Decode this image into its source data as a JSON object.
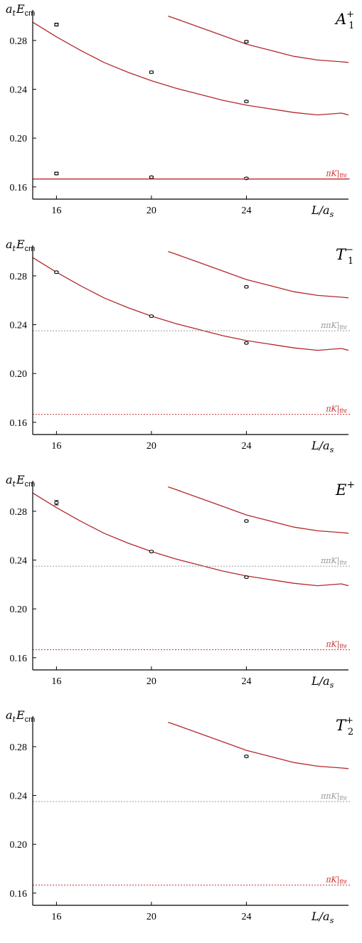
{
  "colors": {
    "curve": "#b5282a",
    "threshold_pk": "#c83232",
    "threshold_ppk": "#9a9a9a",
    "axis": "#000000",
    "point": "#000000"
  },
  "chart_data": [
    {
      "type": "scatter",
      "irrep": "A1+",
      "label": {
        "base": "A",
        "sub": "1",
        "sup": "+"
      },
      "ylabel": {
        "base": "a",
        "sub": "t",
        "main": "E",
        "msub": "cm"
      },
      "xlabel": {
        "base": "L/a",
        "sub": "s"
      },
      "xlim": [
        15,
        28.3
      ],
      "ylim": [
        0.15,
        0.305
      ],
      "xticks": [
        "16",
        "20",
        "24"
      ],
      "yticks": [
        "0.28",
        "0.24",
        "0.20",
        "0.16"
      ],
      "points": [
        {
          "x": 16,
          "y": 0.293,
          "err": 0.0012
        },
        {
          "x": 16,
          "y": 0.171,
          "err": 0.0011
        },
        {
          "x": 20,
          "y": 0.254,
          "err": 0.0009
        },
        {
          "x": 20,
          "y": 0.168,
          "err": 0.0008
        },
        {
          "x": 24,
          "y": 0.279,
          "err": 0.0009
        },
        {
          "x": 24,
          "y": 0.23,
          "err": 0.0008
        },
        {
          "x": 24,
          "y": 0.167,
          "err": 0.0007
        }
      ],
      "curves": [
        {
          "x": [
            15,
            16,
            17,
            18,
            19,
            20,
            21,
            22,
            23,
            24,
            25,
            26,
            27,
            28,
            28.3
          ],
          "y": [
            0.295,
            0.283,
            0.272,
            0.262,
            0.254,
            0.247,
            0.241,
            0.236,
            0.231,
            0.227,
            0.224,
            0.221,
            0.219,
            0.2205,
            0.219
          ]
        },
        {
          "x": [
            20.7,
            21,
            22,
            23,
            24,
            25,
            26,
            27,
            28,
            28.3
          ],
          "y": [
            0.3,
            0.298,
            0.291,
            0.284,
            0.277,
            0.272,
            0.267,
            0.264,
            0.2625,
            0.262
          ]
        },
        {
          "x": [
            15,
            28.3
          ],
          "y": [
            0.1665,
            0.1665
          ]
        }
      ],
      "thresholds": [
        {
          "label": "πK|thr",
          "y": 0.1665,
          "color": "#c83232"
        }
      ]
    },
    {
      "type": "scatter",
      "irrep": "T1-",
      "label": {
        "base": "T",
        "sub": "1",
        "sup": "−"
      },
      "ylabel": {
        "base": "a",
        "sub": "t",
        "main": "E",
        "msub": "cm"
      },
      "xlabel": {
        "base": "L/a",
        "sub": "s"
      },
      "xlim": [
        15,
        28.3
      ],
      "ylim": [
        0.15,
        0.305
      ],
      "xticks": [
        "16",
        "20",
        "24"
      ],
      "yticks": [
        "0.28",
        "0.24",
        "0.20",
        "0.16"
      ],
      "points": [
        {
          "x": 16,
          "y": 0.283,
          "err": 0.0008
        },
        {
          "x": 20,
          "y": 0.247,
          "err": 0.0007
        },
        {
          "x": 24,
          "y": 0.271,
          "err": 0.0008
        },
        {
          "x": 24,
          "y": 0.225,
          "err": 0.0007
        }
      ],
      "curves": [
        {
          "x": [
            15,
            16,
            17,
            18,
            19,
            20,
            21,
            22,
            23,
            24,
            25,
            26,
            27,
            28,
            28.3
          ],
          "y": [
            0.295,
            0.283,
            0.272,
            0.262,
            0.254,
            0.247,
            0.241,
            0.236,
            0.231,
            0.227,
            0.224,
            0.221,
            0.219,
            0.2205,
            0.219
          ]
        },
        {
          "x": [
            20.7,
            21,
            22,
            23,
            24,
            25,
            26,
            27,
            28,
            28.3
          ],
          "y": [
            0.3,
            0.298,
            0.291,
            0.284,
            0.277,
            0.272,
            0.267,
            0.264,
            0.2625,
            0.262
          ]
        }
      ],
      "thresholds": [
        {
          "label": "ππK|thr",
          "y": 0.235,
          "color": "#9a9a9a"
        },
        {
          "label": "πK|thr",
          "y": 0.1665,
          "color": "#c83232"
        }
      ]
    },
    {
      "type": "scatter",
      "irrep": "E+",
      "label": {
        "base": "E",
        "sub": "",
        "sup": "+"
      },
      "ylabel": {
        "base": "a",
        "sub": "t",
        "main": "E",
        "msub": "cm"
      },
      "xlabel": {
        "base": "L/a",
        "sub": "s"
      },
      "xlim": [
        15,
        28.3
      ],
      "ylim": [
        0.15,
        0.305
      ],
      "xticks": [
        "16",
        "20",
        "24"
      ],
      "yticks": [
        "0.28",
        "0.24",
        "0.20",
        "0.16"
      ],
      "points": [
        {
          "x": 16,
          "y": 0.287,
          "err": 0.0018
        },
        {
          "x": 20,
          "y": 0.247,
          "err": 0.0007
        },
        {
          "x": 24,
          "y": 0.272,
          "err": 0.0008
        },
        {
          "x": 24,
          "y": 0.226,
          "err": 0.0007
        }
      ],
      "curves": [
        {
          "x": [
            15,
            16,
            17,
            18,
            19,
            20,
            21,
            22,
            23,
            24,
            25,
            26,
            27,
            28,
            28.3
          ],
          "y": [
            0.295,
            0.283,
            0.272,
            0.262,
            0.254,
            0.247,
            0.241,
            0.236,
            0.231,
            0.227,
            0.224,
            0.221,
            0.219,
            0.2205,
            0.219
          ]
        },
        {
          "x": [
            20.7,
            21,
            22,
            23,
            24,
            25,
            26,
            27,
            28,
            28.3
          ],
          "y": [
            0.3,
            0.298,
            0.291,
            0.284,
            0.277,
            0.272,
            0.267,
            0.264,
            0.2625,
            0.262
          ]
        }
      ],
      "thresholds": [
        {
          "label": "ππK|thr",
          "y": 0.235,
          "color": "#9a9a9a"
        },
        {
          "label": "πK|thr",
          "y": 0.1665,
          "color": "#c83232"
        }
      ]
    },
    {
      "type": "scatter",
      "irrep": "T2+",
      "label": {
        "base": "T",
        "sub": "2",
        "sup": "+"
      },
      "ylabel": {
        "base": "a",
        "sub": "t",
        "main": "E",
        "msub": "cm"
      },
      "xlabel": {
        "base": "L/a",
        "sub": "s"
      },
      "xlim": [
        15,
        28.3
      ],
      "ylim": [
        0.15,
        0.305
      ],
      "xticks": [
        "16",
        "20",
        "24"
      ],
      "yticks": [
        "0.28",
        "0.24",
        "0.20",
        "0.16"
      ],
      "points": [
        {
          "x": 24,
          "y": 0.272,
          "err": 0.0008
        }
      ],
      "curves": [
        {
          "x": [
            20.7,
            21,
            22,
            23,
            24,
            25,
            26,
            27,
            28,
            28.3
          ],
          "y": [
            0.3,
            0.298,
            0.291,
            0.284,
            0.277,
            0.272,
            0.267,
            0.264,
            0.2625,
            0.262
          ]
        }
      ],
      "thresholds": [
        {
          "label": "ππK|thr",
          "y": 0.235,
          "color": "#9a9a9a"
        },
        {
          "label": "πK|thr",
          "y": 0.1665,
          "color": "#c83232"
        }
      ]
    }
  ]
}
